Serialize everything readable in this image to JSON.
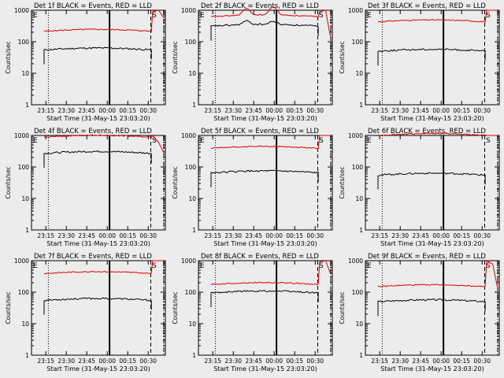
{
  "chart_data": {
    "type": "line",
    "layout": "3x3 grid",
    "yscale": "log",
    "ylim": [
      1,
      1000
    ],
    "ylabel": "Counts/sec",
    "xlabel": "Start Time (31-May-15 23:03:20)",
    "xticks": [
      "23:15",
      "23:30",
      "23:45",
      "00:00",
      "00:15",
      "00:30"
    ],
    "yticks": [
      "1",
      "10",
      "100",
      "1000"
    ],
    "legend_color_words": {
      "black": "BLACK",
      "red": "RED"
    },
    "series_colors": {
      "events": "#000000",
      "lld": "#e00000"
    },
    "markers": {
      "start_letter": "E",
      "end_letter": "S"
    },
    "panels": [
      {
        "title": "Det 1f BLACK = Events, RED = LLD",
        "events_level": 55,
        "lld_level": 215,
        "events_bumps": [],
        "lld_bumps": [],
        "lld_post": [
          900,
          1000,
          600
        ]
      },
      {
        "title": "Det 2f BLACK = Events, RED = LLD",
        "events_level": 310,
        "lld_level": 620,
        "events_bumps": [
          {
            "t": 0.33,
            "h": 1.3
          },
          {
            "t": 0.58,
            "h": 1.25
          }
        ],
        "lld_bumps": [
          {
            "t": 0.33,
            "h": 1.6
          },
          {
            "t": 0.58,
            "h": 1.8
          }
        ],
        "lld_post": [
          900,
          1000,
          150
        ]
      },
      {
        "title": "Det 3f BLACK = Events, RED = LLD",
        "events_level": 50,
        "lld_level": 430,
        "events_bumps": [],
        "lld_bumps": [],
        "lld_post": [
          1000,
          1000,
          1000
        ]
      },
      {
        "title": "Det 4f BLACK = Events, RED = LLD",
        "events_level": 270,
        "lld_level": 880,
        "events_bumps": [],
        "lld_bumps": [],
        "lld_post": [
          1000,
          600,
          300
        ]
      },
      {
        "title": "Det 5f BLACK = Events, RED = LLD",
        "events_level": 65,
        "lld_level": 390,
        "events_bumps": [],
        "lld_bumps": [],
        "lld_post": [
          1000,
          1000,
          1000
        ]
      },
      {
        "title": "Det 6f BLACK = Events, RED = LLD",
        "events_level": 55,
        "lld_level": 1000,
        "events_bumps": [],
        "lld_bumps": [],
        "lld_post": [
          1000,
          1000,
          1000
        ]
      },
      {
        "title": "Det 7f BLACK = Events, RED = LLD",
        "events_level": 55,
        "lld_level": 390,
        "events_bumps": [],
        "lld_bumps": [],
        "lld_post": [
          1000,
          1000,
          1000
        ]
      },
      {
        "title": "Det 8f BLACK = Events, RED = LLD",
        "events_level": 95,
        "lld_level": 175,
        "events_bumps": [],
        "lld_bumps": [],
        "lld_post": [
          900,
          1000,
          400
        ]
      },
      {
        "title": "Det 9f BLACK = Events, RED = LLD",
        "events_level": 50,
        "lld_level": 150,
        "events_bumps": [],
        "lld_bumps": [],
        "lld_post": [
          1000,
          800,
          150
        ]
      }
    ]
  }
}
